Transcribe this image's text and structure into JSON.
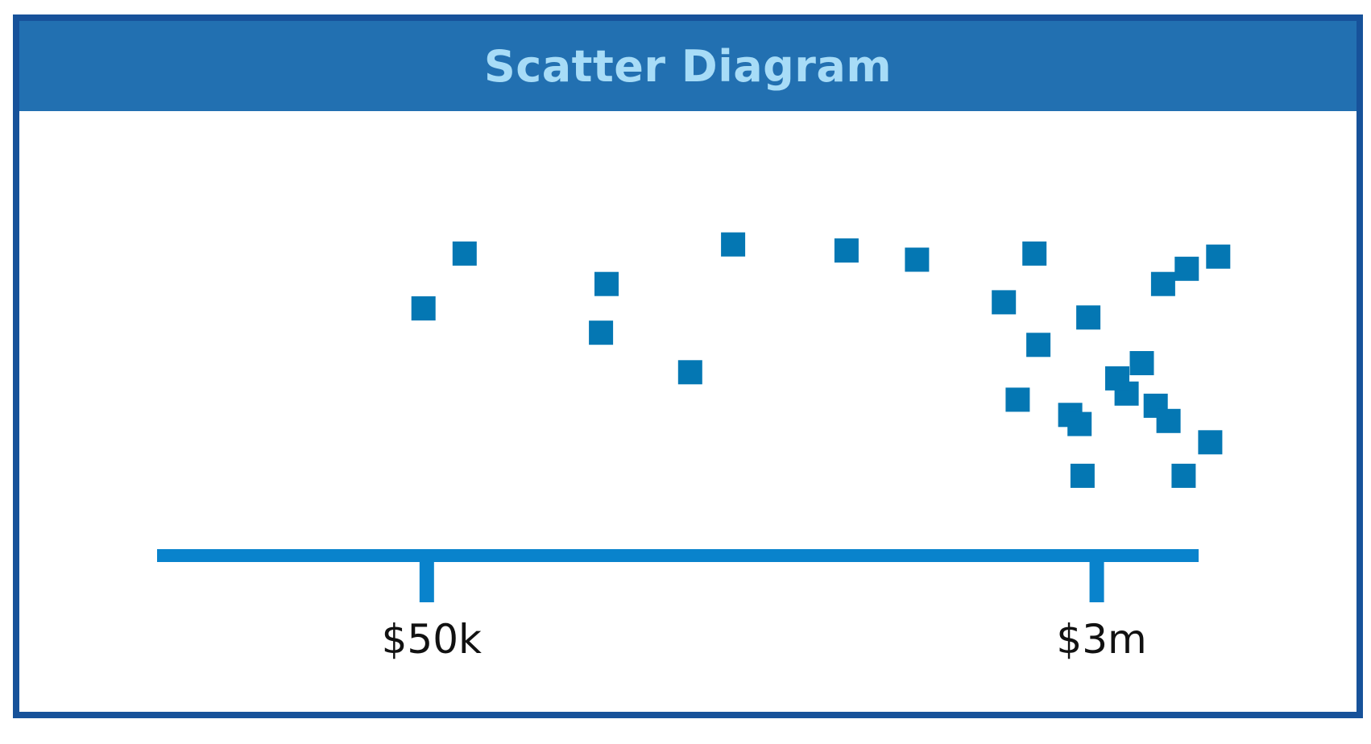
{
  "chart_data": {
    "type": "scatter",
    "title": "Scatter Diagram",
    "xlabel": "",
    "ylabel": "",
    "x_scale": "log",
    "x_ticks": [
      {
        "value": 50000,
        "label": "$50k"
      },
      {
        "value": 3000000,
        "label": "$3m"
      }
    ],
    "xlim": [
      9620,
      5590000
    ],
    "ylim": [
      0,
      100
    ],
    "grid": false,
    "legend": "none",
    "marker": "square",
    "colors": {
      "header": "#2270b1",
      "title": "#a7dcf7",
      "border": "#17529a",
      "axis": "#0983cc",
      "points": "#0477b3",
      "tick_text": "#111111"
    },
    "points": [
      {
        "x": 63000,
        "y": 86
      },
      {
        "x": 49000,
        "y": 68
      },
      {
        "x": 150000,
        "y": 76
      },
      {
        "x": 145000,
        "y": 60
      },
      {
        "x": 250000,
        "y": 47
      },
      {
        "x": 325000,
        "y": 89
      },
      {
        "x": 650000,
        "y": 87
      },
      {
        "x": 1000000,
        "y": 84
      },
      {
        "x": 1700000,
        "y": 70
      },
      {
        "x": 2050000,
        "y": 86
      },
      {
        "x": 2100000,
        "y": 56
      },
      {
        "x": 1850000,
        "y": 38
      },
      {
        "x": 2550000,
        "y": 33
      },
      {
        "x": 2700000,
        "y": 30
      },
      {
        "x": 2750000,
        "y": 13
      },
      {
        "x": 3600000,
        "y": 40
      },
      {
        "x": 2850000,
        "y": 65
      },
      {
        "x": 3400000,
        "y": 45
      },
      {
        "x": 3950000,
        "y": 50
      },
      {
        "x": 4500000,
        "y": 76
      },
      {
        "x": 5200000,
        "y": 81
      },
      {
        "x": 6300000,
        "y": 85
      },
      {
        "x": 4300000,
        "y": 36
      },
      {
        "x": 4650000,
        "y": 31
      },
      {
        "x": 5100000,
        "y": 13
      },
      {
        "x": 6000000,
        "y": 24
      }
    ]
  }
}
